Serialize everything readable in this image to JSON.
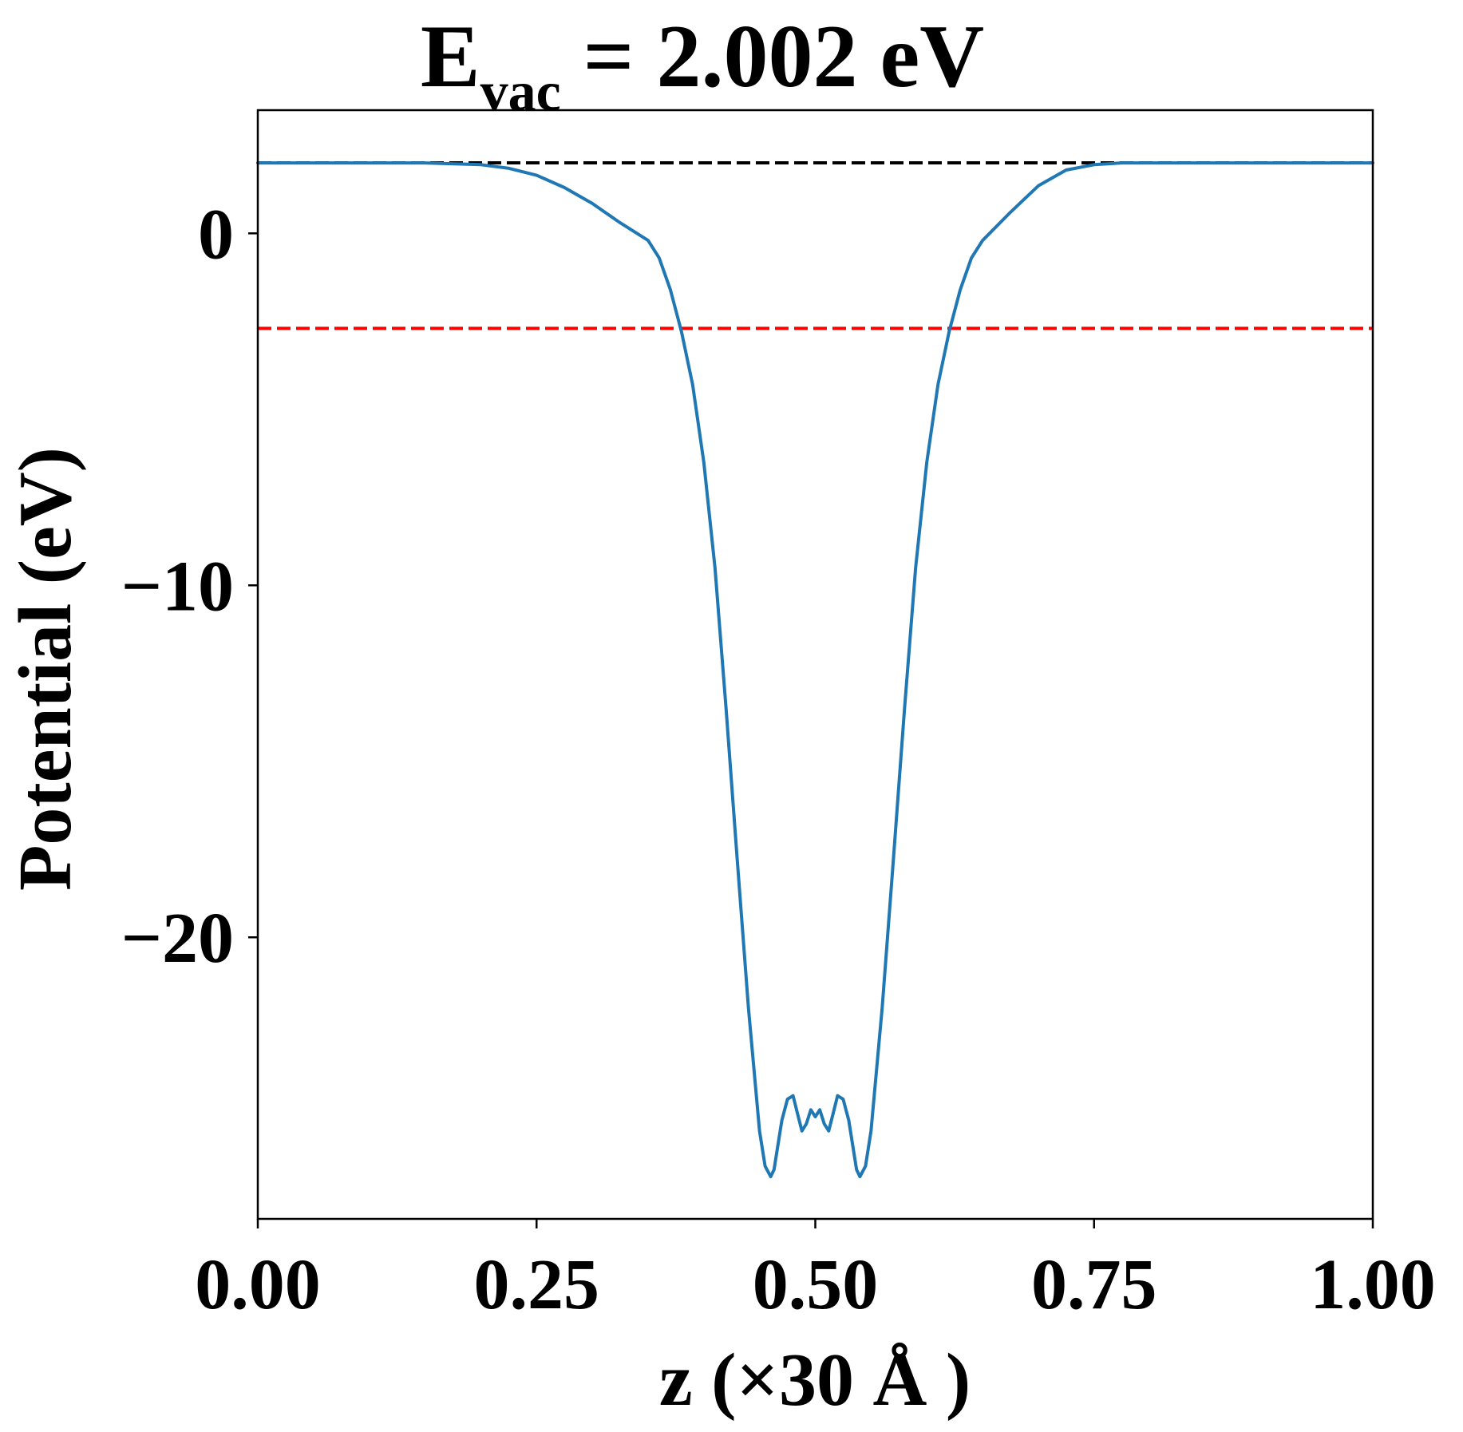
{
  "chart_data": {
    "type": "line",
    "title": {
      "symbol": "E",
      "subscript": "vac",
      "rest": " = 2.002 eV"
    },
    "xlabel": "z (×30 Å )",
    "ylabel": "Potential (eV)",
    "xlim": [
      0.0,
      1.0
    ],
    "ylim": [
      -28.0,
      3.5
    ],
    "xticks": [
      {
        "value": 0.0,
        "label": "0.00"
      },
      {
        "value": 0.25,
        "label": "0.25"
      },
      {
        "value": 0.5,
        "label": "0.50"
      },
      {
        "value": 0.75,
        "label": "0.75"
      },
      {
        "value": 1.0,
        "label": "1.00"
      }
    ],
    "yticks": [
      {
        "value": 0,
        "label": "0"
      },
      {
        "value": -10,
        "label": "−10"
      },
      {
        "value": -20,
        "label": "−20"
      }
    ],
    "grid": false,
    "series": [
      {
        "color": "#1f77b4",
        "x": [
          0.0,
          0.1,
          0.15,
          0.2,
          0.225,
          0.25,
          0.275,
          0.3,
          0.325,
          0.35,
          0.36,
          0.37,
          0.38,
          0.39,
          0.4,
          0.41,
          0.42,
          0.43,
          0.44,
          0.45,
          0.455,
          0.46,
          0.463,
          0.466,
          0.47,
          0.475,
          0.48,
          0.484,
          0.488,
          0.492,
          0.496,
          0.5,
          0.504,
          0.508,
          0.512,
          0.516,
          0.52,
          0.525,
          0.53,
          0.534,
          0.537,
          0.54,
          0.545,
          0.55,
          0.56,
          0.57,
          0.58,
          0.59,
          0.6,
          0.61,
          0.62,
          0.63,
          0.64,
          0.65,
          0.675,
          0.7,
          0.725,
          0.75,
          0.775,
          0.8,
          0.85,
          0.9,
          1.0
        ],
        "y": [
          2.0,
          2.0,
          2.0,
          1.95,
          1.85,
          1.65,
          1.3,
          0.85,
          0.3,
          -0.2,
          -0.7,
          -1.6,
          -2.8,
          -4.3,
          -6.5,
          -9.5,
          -13.5,
          -17.8,
          -22.0,
          -25.5,
          -26.5,
          -26.8,
          -26.6,
          -26.0,
          -25.2,
          -24.6,
          -24.5,
          -25.0,
          -25.5,
          -25.3,
          -24.9,
          -25.1,
          -24.9,
          -25.3,
          -25.5,
          -25.0,
          -24.5,
          -24.6,
          -25.2,
          -26.0,
          -26.6,
          -26.8,
          -26.5,
          -25.5,
          -22.0,
          -17.8,
          -13.5,
          -9.5,
          -6.5,
          -4.3,
          -2.8,
          -1.6,
          -0.7,
          -0.2,
          0.6,
          1.35,
          1.8,
          1.95,
          2.0,
          2.0,
          2.0,
          2.0,
          2.0
        ]
      }
    ],
    "reference_lines": [
      {
        "y": 2.002,
        "color": "#000000",
        "style": "dashed"
      },
      {
        "y": -2.7,
        "color": "#ff0000",
        "style": "dashed"
      }
    ]
  }
}
